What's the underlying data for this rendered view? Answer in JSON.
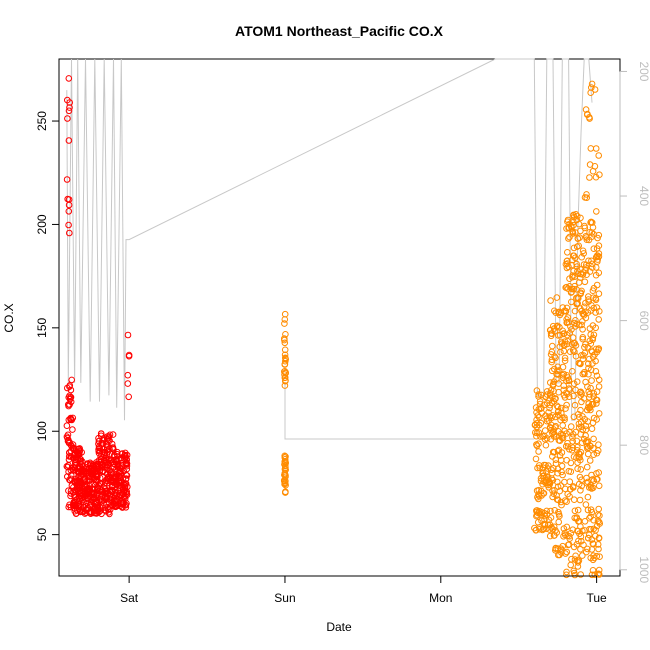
{
  "chart_data": {
    "type": "scatter",
    "title": "ATOM1 Northeast_Pacific CO.X",
    "xlabel": "Date",
    "ylabel": "CO.X",
    "ylim": [
      30,
      280
    ],
    "xlim": [
      -0.45,
      3.15
    ],
    "x_axis": {
      "ticks": [
        0,
        1,
        2,
        3
      ],
      "tick_labels": [
        "Sat",
        "Sun",
        "Mon",
        "Tue"
      ]
    },
    "y_axis": {
      "ticks": [
        50,
        100,
        150,
        200,
        250
      ],
      "tick_labels": [
        "50",
        "100",
        "150",
        "200",
        "250"
      ]
    },
    "y2_axis": {
      "reversed": true,
      "ylim": [
        1010,
        180
      ],
      "ticks": [
        200,
        400,
        600,
        800,
        1000
      ],
      "tick_labels": [
        "200",
        "400",
        "600",
        "800",
        "1000"
      ],
      "color": "#bdbdbd"
    },
    "grid": false,
    "series": [
      {
        "color": "#ff0000",
        "marker": "open-circle",
        "clusters": [
          {
            "x_range": [
              -0.4,
              -0.38
            ],
            "y_range": [
              178,
              271
            ],
            "count": 14
          },
          {
            "x_range": [
              -0.4,
              -0.36
            ],
            "y_range": [
              63,
              125
            ],
            "count": 60
          },
          {
            "x_range": [
              -0.36,
              -0.3
            ],
            "y_range": [
              60,
              92
            ],
            "count": 120
          },
          {
            "x_range": [
              -0.3,
              -0.2
            ],
            "y_range": [
              60,
              85
            ],
            "count": 160
          },
          {
            "x_range": [
              -0.2,
              -0.1
            ],
            "y_range": [
              60,
              100
            ],
            "count": 160
          },
          {
            "x_range": [
              -0.1,
              -0.01
            ],
            "y_range": [
              63,
              90
            ],
            "count": 140
          },
          {
            "x_range": [
              -0.01,
              0.0
            ],
            "y_range": [
              101,
              149
            ],
            "count": 6
          }
        ]
      },
      {
        "color": "#ff8c00",
        "marker": "open-circle",
        "clusters": [
          {
            "x_range": [
              0.995,
              1.005
            ],
            "y_range": [
              122,
              158
            ],
            "count": 25
          },
          {
            "x_range": [
              0.995,
              1.005
            ],
            "y_range": [
              70,
              90
            ],
            "count": 30
          },
          {
            "x_range": [
              2.6,
              2.7
            ],
            "y_range": [
              52,
              120
            ],
            "count": 120
          },
          {
            "x_range": [
              2.7,
              2.8
            ],
            "y_range": [
              38,
              165
            ],
            "count": 180
          },
          {
            "x_range": [
              2.8,
              2.9
            ],
            "y_range": [
              30,
              205
            ],
            "count": 220
          },
          {
            "x_range": [
              2.9,
              3.02
            ],
            "y_range": [
              30,
              200
            ],
            "count": 240
          },
          {
            "x_range": [
              2.9,
              3.02
            ],
            "y_range": [
              200,
              270
            ],
            "count": 25
          }
        ]
      }
    ],
    "pressure_line": {
      "color": "#c8c8c8",
      "axis": "y2",
      "points": [
        [
          -0.4,
          230
        ],
        [
          -0.39,
          700
        ],
        [
          -0.37,
          150
        ],
        [
          -0.35,
          700
        ],
        [
          -0.33,
          150
        ],
        [
          -0.31,
          700
        ],
        [
          -0.28,
          150
        ],
        [
          -0.25,
          730
        ],
        [
          -0.22,
          150
        ],
        [
          -0.19,
          730
        ],
        [
          -0.16,
          150
        ],
        [
          -0.13,
          720
        ],
        [
          -0.1,
          150
        ],
        [
          -0.08,
          740
        ],
        [
          -0.05,
          150
        ],
        [
          -0.03,
          760
        ],
        [
          -0.02,
          470
        ],
        [
          0.0,
          470
        ],
        [
          2.35,
          170
        ],
        [
          2.6,
          170
        ],
        [
          2.62,
          720
        ],
        [
          2.66,
          720
        ],
        [
          2.68,
          170
        ],
        [
          2.72,
          170
        ],
        [
          2.74,
          700
        ],
        [
          2.76,
          700
        ],
        [
          2.78,
          170
        ],
        [
          2.82,
          170
        ],
        [
          2.84,
          760
        ],
        [
          2.86,
          760
        ],
        [
          2.88,
          450
        ],
        [
          2.9,
          300
        ],
        [
          2.92,
          170
        ],
        [
          2.95,
          170
        ],
        [
          2.97,
          250
        ]
      ],
      "extra_segments": [
        [
          [
            1.0,
            700
          ],
          [
            1.0,
            790
          ],
          [
            2.6,
            790
          ]
        ]
      ]
    }
  }
}
